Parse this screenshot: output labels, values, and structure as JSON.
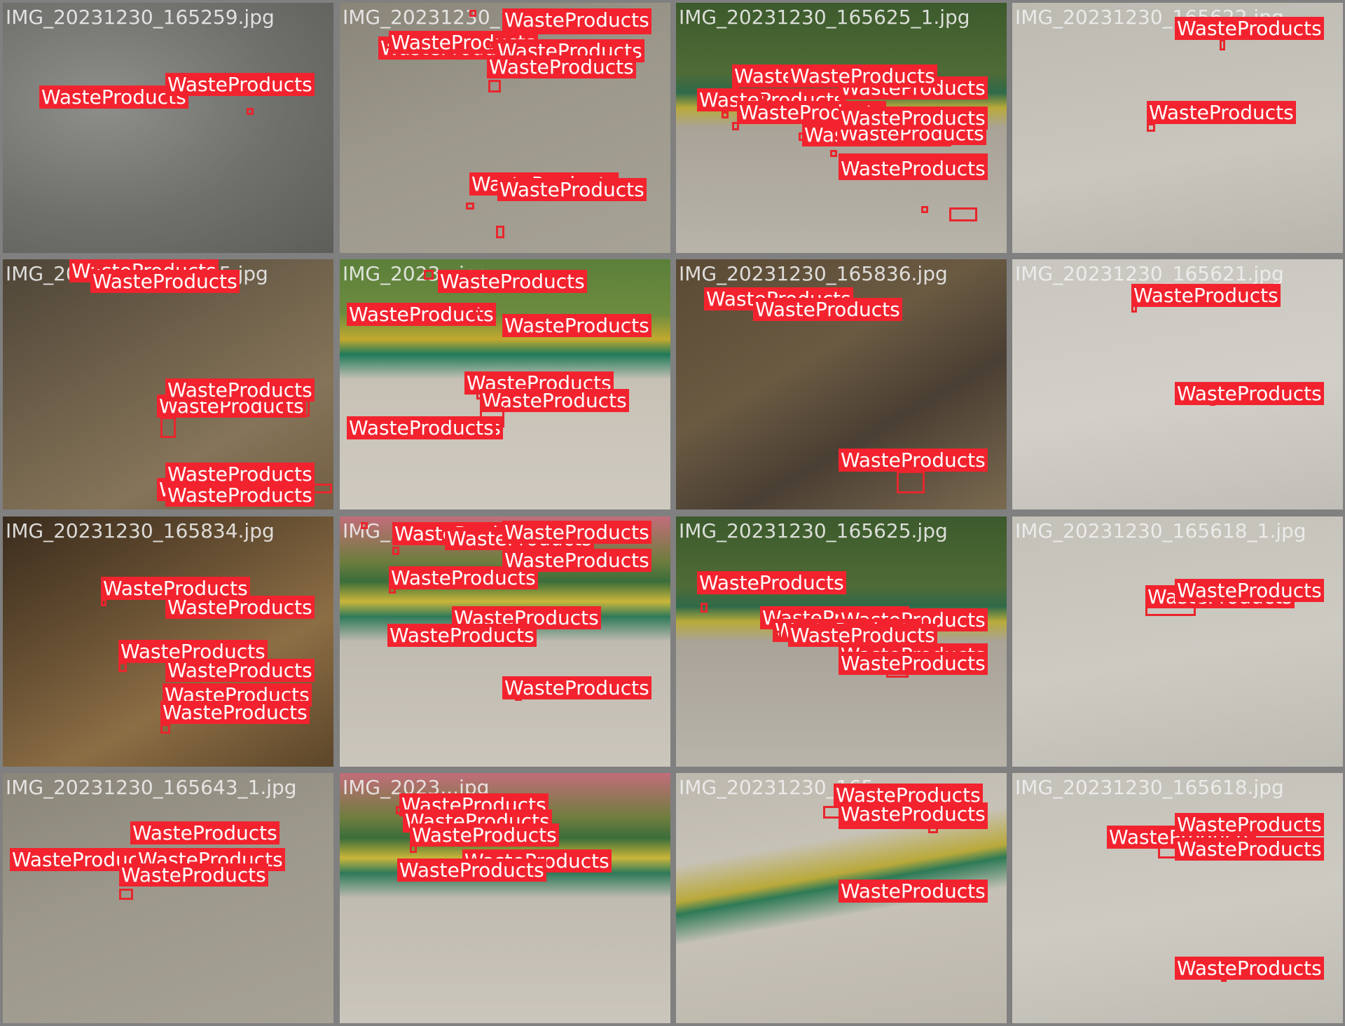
{
  "colors": {
    "background": "#808080",
    "box": "#e8262d",
    "label_bg": "#f2232e",
    "label_text": "#ffffff"
  },
  "tiles": [
    {
      "filename": "IMG_20231230_165259.jpg",
      "scene": "asphalt",
      "detections": [
        {
          "label": "WasteProducts"
        },
        {
          "label": "WasteProducts"
        }
      ]
    },
    {
      "filename": "IMG_20231230_165...",
      "scene": "chairs",
      "detections": [
        {
          "label": "WasteProducts"
        },
        {
          "label": "WasteProducts"
        },
        {
          "label": "WasteProducts"
        },
        {
          "label": "WasteProducts"
        },
        {
          "label": "WasteProducts"
        },
        {
          "label": "WasteProducts"
        },
        {
          "label": "WasteProducts"
        },
        {
          "label": "WasteProducts"
        }
      ]
    },
    {
      "filename": "IMG_20231230_165625_1.jpg",
      "scene": "curb",
      "detections": [
        {
          "label": "WasteProducts"
        },
        {
          "label": "WasteProducts"
        },
        {
          "label": "WasteProducts"
        },
        {
          "label": "WasteProducts"
        },
        {
          "label": "WasteProducts"
        },
        {
          "label": "WasteProducts"
        },
        {
          "label": "WasteProducts"
        },
        {
          "label": "WasteProducts"
        },
        {
          "label": "WasteProducts"
        },
        {
          "label": "WasteProducts"
        }
      ]
    },
    {
      "filename": "IMG_20231230_165622.jpg",
      "scene": "pavement-shoe",
      "detections": [
        {
          "label": "WasteProducts"
        },
        {
          "label": "WasteProducts"
        }
      ]
    },
    {
      "filename": "IMG_20231230_165...5.jpg",
      "scene": "bench",
      "detections": [
        {
          "label": "WasteProducts"
        },
        {
          "label": "WasteProducts"
        },
        {
          "label": "WasteProducts"
        },
        {
          "label": "WasteProducts"
        },
        {
          "label": "WasteProducts"
        },
        {
          "label": "WasteProducts"
        },
        {
          "label": "WasteProducts"
        },
        {
          "label": "WasteProducts"
        }
      ]
    },
    {
      "filename": "IMG_2023...jpg",
      "scene": "curb-bright",
      "detections": [
        {
          "label": "WasteProducts"
        },
        {
          "label": "WasteProducts"
        },
        {
          "label": "WasteProducts"
        },
        {
          "label": "WasteProducts"
        },
        {
          "label": "WasteProducts"
        },
        {
          "label": "WasteProducts"
        },
        {
          "label": "WasteProducts"
        }
      ]
    },
    {
      "filename": "IMG_20231230_165836.jpg",
      "scene": "bench-dark",
      "detections": [
        {
          "label": "WasteProducts"
        },
        {
          "label": "WasteProducts"
        },
        {
          "label": "WasteProducts"
        }
      ]
    },
    {
      "filename": "IMG_20231230_165621.jpg",
      "scene": "pavement-light",
      "detections": [
        {
          "label": "WasteProducts"
        },
        {
          "label": "WasteProducts"
        }
      ]
    },
    {
      "filename": "IMG_20231230_165834.jpg",
      "scene": "bench-night",
      "detections": [
        {
          "label": "WasteProducts"
        },
        {
          "label": "WasteProducts"
        },
        {
          "label": "WasteProducts"
        },
        {
          "label": "WasteProducts"
        },
        {
          "label": "WasteProducts"
        },
        {
          "label": "WasteProducts"
        }
      ]
    },
    {
      "filename": "IMG_...jpg",
      "scene": "curb-pink",
      "detections": [
        {
          "label": "WasteProducts"
        },
        {
          "label": "WasteProducts"
        },
        {
          "label": "WasteProducts"
        },
        {
          "label": "WasteProducts"
        },
        {
          "label": "WasteProducts"
        },
        {
          "label": "WasteProducts"
        },
        {
          "label": "WasteProducts"
        },
        {
          "label": "WasteProducts"
        }
      ]
    },
    {
      "filename": "IMG_20231230_165625.jpg",
      "scene": "curb",
      "detections": [
        {
          "label": "WasteProducts"
        },
        {
          "label": "WasteProducts"
        },
        {
          "label": "WasteProducts"
        },
        {
          "label": "WasteProducts"
        },
        {
          "label": "WasteProducts"
        },
        {
          "label": "WasteProducts"
        },
        {
          "label": "WasteProducts"
        }
      ]
    },
    {
      "filename": "IMG_20231230_165618_1.jpg",
      "scene": "pavement-bottle",
      "detections": [
        {
          "label": "WasteProducts"
        },
        {
          "label": "WasteProducts"
        }
      ]
    },
    {
      "filename": "IMG_20231230_165643_1.jpg",
      "scene": "chairs",
      "detections": [
        {
          "label": "WasteProducts"
        },
        {
          "label": "WasteProducts"
        },
        {
          "label": "WasteProducts"
        },
        {
          "label": "WasteProducts"
        }
      ]
    },
    {
      "filename": "IMG_2023...jpg",
      "scene": "curb-pink",
      "detections": [
        {
          "label": "WasteProducts"
        },
        {
          "label": "WasteProducts"
        },
        {
          "label": "WasteProducts"
        },
        {
          "label": "WasteProducts"
        },
        {
          "label": "WasteProducts"
        },
        {
          "label": "WasteProducts"
        },
        {
          "label": "WasteProducts"
        }
      ]
    },
    {
      "filename": "IMG_20231230_165...",
      "scene": "curb-corner",
      "detections": [
        {
          "label": "WasteProducts"
        },
        {
          "label": "WasteProducts"
        },
        {
          "label": "WasteProducts"
        },
        {
          "label": "WasteProducts"
        },
        {
          "label": "WasteProducts"
        }
      ]
    },
    {
      "filename": "IMG_20231230_165618.jpg",
      "scene": "pavement-bottle",
      "detections": [
        {
          "label": "WasteProducts"
        },
        {
          "label": "WasteProducts"
        },
        {
          "label": "WasteProducts"
        },
        {
          "label": "WasteProducts"
        }
      ]
    }
  ]
}
